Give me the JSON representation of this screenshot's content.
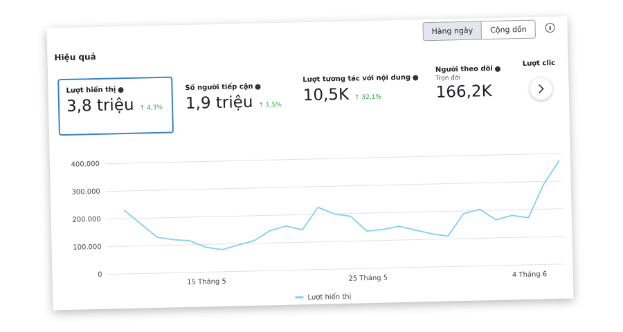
{
  "header": {
    "title": "Hiệu quả"
  },
  "toggle": [
    "Hàng ngày",
    "Cộng dồn"
  ],
  "metrics": [
    {
      "label": "Lượt hiển thị",
      "value": "3,8 triệu",
      "change": "4,3%"
    },
    {
      "label": "Số người tiếp cận",
      "value": "1,9 triệu",
      "change": "1,5%"
    },
    {
      "label": "Lượt tương tác với nội dung",
      "value": "10,5K",
      "change": "32,1%"
    },
    {
      "label": "Người theo dõi",
      "note": "Trọn đời",
      "value": "166,2K"
    },
    {
      "label": "Lượt clic"
    }
  ],
  "chart_data": {
    "type": "line",
    "categories": [
      null,
      null,
      null,
      null,
      null,
      "15 Tháng 5",
      null,
      null,
      null,
      null,
      null,
      null,
      null,
      null,
      null,
      "25 Tháng 5",
      null,
      null,
      null,
      null,
      null,
      null,
      null,
      null,
      null,
      "4 Tháng 6",
      null,
      null
    ],
    "series": [
      {
        "name": "Lượt hiển thị",
        "color": "#7fd0ee",
        "values": [
          230000,
          180000,
          130000,
          120000,
          115000,
          90000,
          80000,
          95000,
          110000,
          145000,
          160000,
          145000,
          225000,
          200000,
          190000,
          135000,
          140000,
          150000,
          135000,
          120000,
          110000,
          190000,
          205000,
          165000,
          180000,
          170000,
          290000,
          375000
        ]
      }
    ],
    "ylim": [
      0,
      400000
    ],
    "yticks": [
      0,
      {
        "value": 100000,
        "label": "100.000"
      },
      {
        "value": 200000,
        "label": "200.000"
      },
      {
        "value": 300000,
        "label": "300.000"
      },
      {
        "value": 400000,
        "label": "400.000"
      }
    ],
    "grid": true
  }
}
